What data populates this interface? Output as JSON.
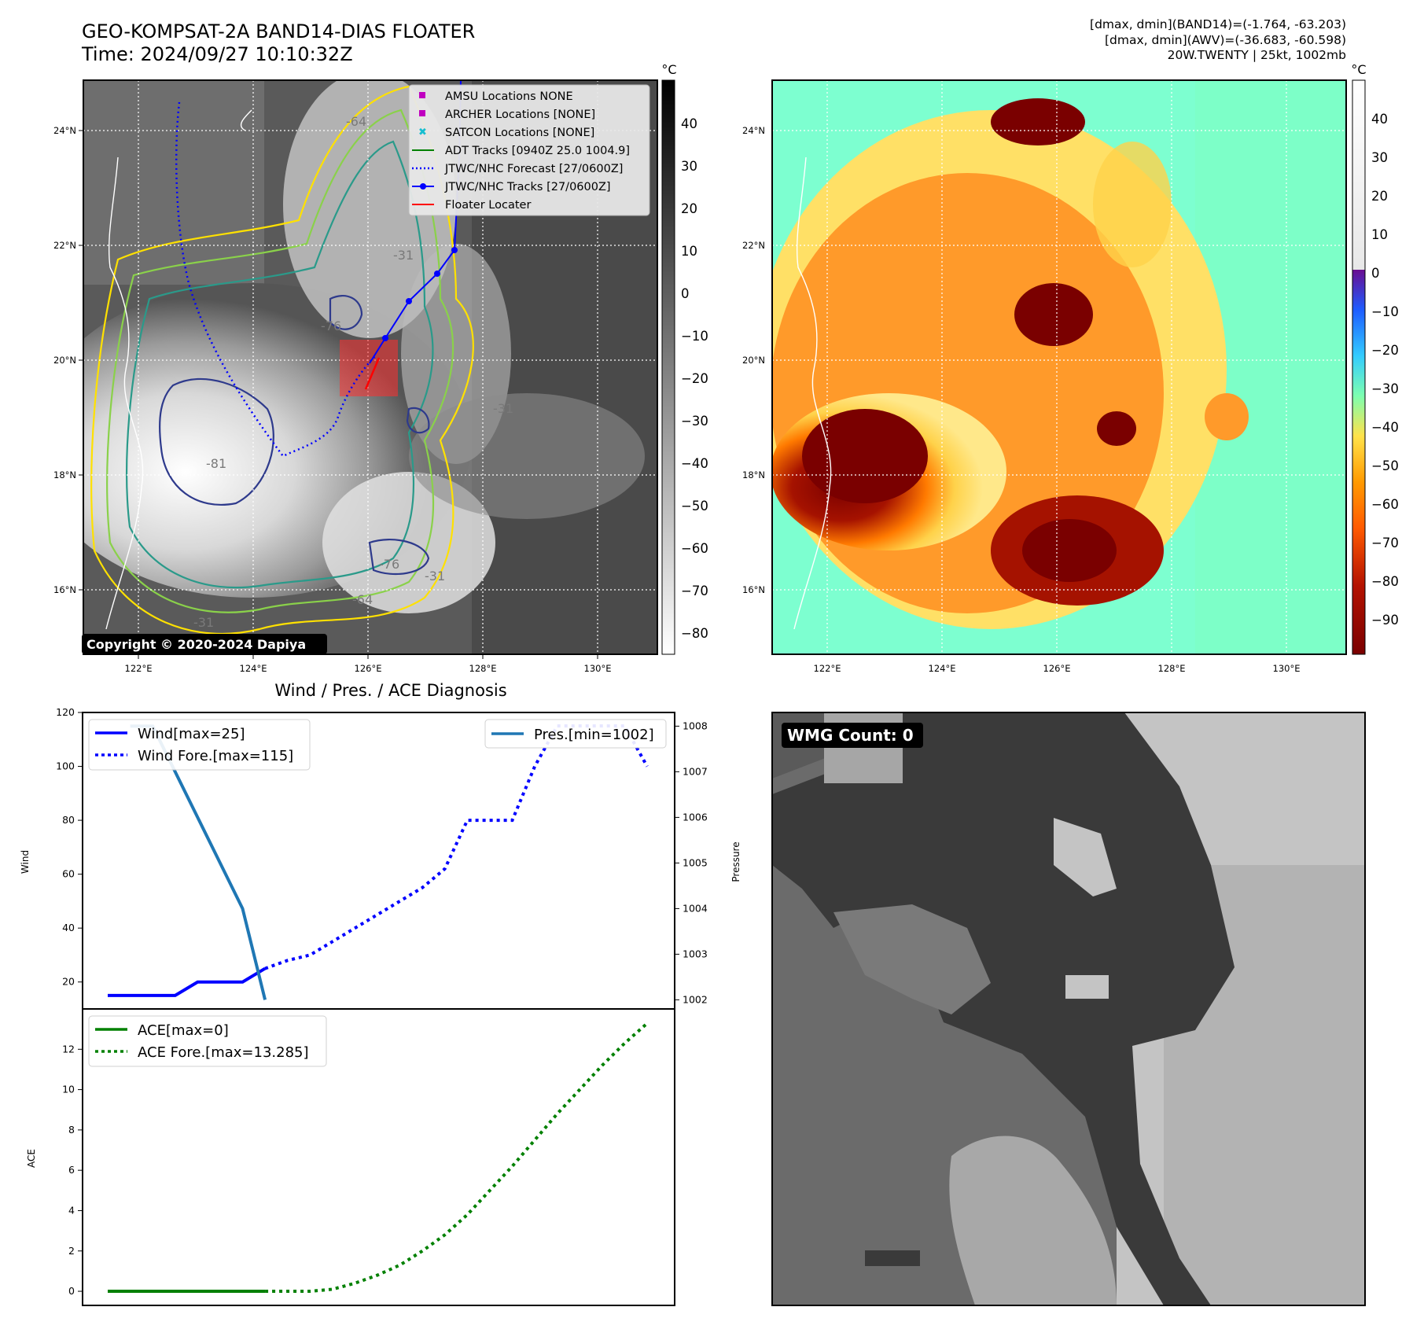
{
  "header": {
    "title": "GEO-KOMPSAT-2A BAND14-DIAS FLOATER",
    "time": "Time: 2024/09/27 10:10:32Z",
    "dmax_band14": "[dmax, dmin](BAND14)=(-1.764, -63.203)",
    "dmax_awv": "[dmax, dmin](AWV)=(-36.683, -60.598)",
    "storm_info": "20W.TWENTY | 25kt, 1002mb"
  },
  "map_left": {
    "unit": "°C",
    "copyright": "Copyright © 2020-2024 Dapiya",
    "lat_labels": [
      "24°N",
      "22°N",
      "20°N",
      "18°N",
      "16°N"
    ],
    "lon_labels": [
      "122°E",
      "124°E",
      "126°E",
      "128°E",
      "130°E"
    ],
    "colorbar_ticks": [
      "40",
      "30",
      "20",
      "10",
      "0",
      "−10",
      "−20",
      "−30",
      "−40",
      "−50",
      "−60",
      "−70",
      "−80"
    ],
    "contour_labels": [
      "-64",
      "-31",
      "-81",
      "-76",
      "-31",
      "-76",
      "-64",
      "-31",
      "-31"
    ],
    "legend": [
      {
        "label": "AMSU Locations NONE",
        "color": "#c000c0",
        "marker": "square"
      },
      {
        "label": "ARCHER Locations [NONE]",
        "color": "#c000c0",
        "marker": "square"
      },
      {
        "label": "SATCON Locations [NONE]",
        "color": "#17becf",
        "marker": "x"
      },
      {
        "label": "ADT Tracks [0940Z 25.0 1004.9]",
        "color": "#008000",
        "marker": "line"
      },
      {
        "label": "JTWC/NHC Forecast [27/0600Z]",
        "color": "#0000ff",
        "marker": "dotted"
      },
      {
        "label": "JTWC/NHC Tracks [27/0600Z]",
        "color": "#0000ff",
        "marker": "line-dot"
      },
      {
        "label": "Floater Locater",
        "color": "#ff0000",
        "marker": "line"
      }
    ]
  },
  "map_right": {
    "unit": "°C",
    "lat_labels": [
      "24°N",
      "22°N",
      "20°N",
      "18°N",
      "16°N"
    ],
    "lon_labels": [
      "122°E",
      "124°E",
      "126°E",
      "128°E",
      "130°E"
    ],
    "colorbar_ticks": [
      "40",
      "30",
      "20",
      "10",
      "0",
      "−10",
      "−20",
      "−30",
      "−40",
      "−50",
      "−60",
      "−70",
      "−80",
      "−90"
    ]
  },
  "diag": {
    "title": "Wind / Pres. / ACE Diagnosis",
    "wind_ylabel": "Wind",
    "pres_ylabel": "Pressure",
    "ace_ylabel": "ACE",
    "wind_ticks": [
      "120",
      "100",
      "80",
      "60",
      "40",
      "20"
    ],
    "pres_ticks": [
      "1008",
      "1007",
      "1006",
      "1005",
      "1004",
      "1003",
      "1002"
    ],
    "ace_ticks": [
      "12",
      "10",
      "8",
      "6",
      "4",
      "2",
      "0"
    ],
    "legend_wind": "Wind[max=25]",
    "legend_wind_fore": "Wind Fore.[max=115]",
    "legend_pres": "Pres.[min=1002]",
    "legend_ace": "ACE[max=0]",
    "legend_ace_fore": "ACE Fore.[max=13.285]"
  },
  "wmg": {
    "label": "WMG Count: 0"
  },
  "chart_data": [
    {
      "type": "line",
      "name": "wind",
      "ylabel": "Wind",
      "ylim": [
        10,
        120
      ],
      "x": [
        0,
        1,
        2,
        3,
        4,
        5,
        6,
        7
      ],
      "series": [
        {
          "name": "Wind[max=25]",
          "values": [
            15,
            15,
            15,
            15,
            20,
            20,
            20,
            25
          ],
          "color": "#0000ff",
          "style": "solid"
        },
        {
          "name": "Wind Fore.[max=115]",
          "x": [
            7,
            8,
            9,
            10,
            11,
            12,
            13,
            14,
            15,
            16,
            17,
            18,
            19,
            20,
            21,
            22,
            23,
            24
          ],
          "values": [
            25,
            28,
            30,
            35,
            40,
            45,
            50,
            55,
            62,
            80,
            80,
            80,
            100,
            115,
            115,
            115,
            115,
            100
          ],
          "color": "#0000ff",
          "style": "dotted"
        }
      ]
    },
    {
      "type": "line",
      "name": "pressure",
      "ylabel": "Pressure",
      "ylim": [
        1001.8,
        1008.3
      ],
      "x": [
        1,
        2,
        3,
        4,
        5,
        6,
        7
      ],
      "series": [
        {
          "name": "Pres.[min=1002]",
          "values": [
            1008,
            1008,
            1007,
            1006,
            1005,
            1004,
            1002
          ],
          "color": "#1f77b4",
          "style": "solid"
        }
      ]
    },
    {
      "type": "line",
      "name": "ace",
      "ylabel": "ACE",
      "ylim": [
        -0.7,
        14
      ],
      "x": [
        0,
        1,
        2,
        3,
        4,
        5,
        6,
        7
      ],
      "series": [
        {
          "name": "ACE[max=0]",
          "values": [
            0,
            0,
            0,
            0,
            0,
            0,
            0,
            0
          ],
          "color": "#008000",
          "style": "solid"
        },
        {
          "name": "ACE Fore.[max=13.285]",
          "x": [
            7,
            8,
            9,
            10,
            11,
            12,
            13,
            14,
            15,
            16,
            17,
            18,
            19,
            20,
            21,
            22,
            23,
            24
          ],
          "values": [
            0,
            0,
            0,
            0.1,
            0.4,
            0.8,
            1.3,
            2.0,
            2.8,
            3.8,
            5.0,
            6.2,
            7.5,
            8.8,
            10.0,
            11.2,
            12.3,
            13.285
          ],
          "color": "#008000",
          "style": "dotted"
        }
      ]
    }
  ]
}
